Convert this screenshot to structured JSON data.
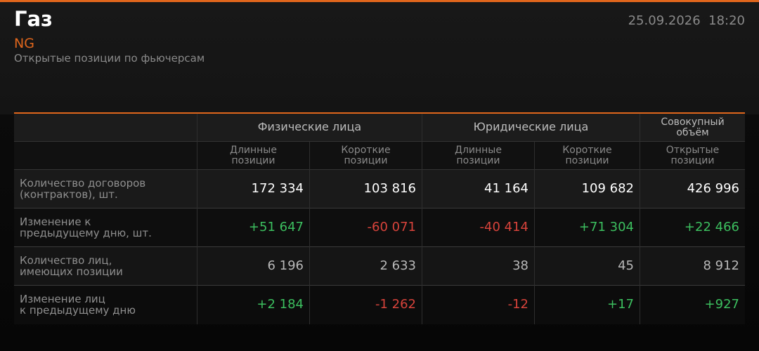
{
  "header": {
    "title": "Газ",
    "ticker": "NG",
    "subtitle": "Открытые позиции по фьючерсам",
    "datetime": "25.09.2026  18:20"
  },
  "table": {
    "groups": [
      "Физические лица",
      "Юридические лица",
      "Совокупный\nобъём"
    ],
    "subheaders": [
      "Длинные\nпозиции",
      "Короткие\nпозиции",
      "Длинные\nпозиции",
      "Короткие\nпозиции",
      "Открытые\nпозиции"
    ],
    "rows": [
      {
        "label": "Количество договоров\n(контрактов), шт.",
        "values": [
          "172 334",
          "103 816",
          "41 164",
          "109 682",
          "426 996"
        ]
      },
      {
        "label": "Изменение к\nпредыдущему дню, шт.",
        "values": [
          "+51 647",
          "-60 071",
          "-40 414",
          "+71 304",
          "+22 466"
        ]
      },
      {
        "label": "Количество лиц,\nимеющих позиции",
        "values": [
          "6 196",
          "2 633",
          "38",
          "45",
          "8 912"
        ]
      },
      {
        "label": "Изменение лиц\nк предыдущему дню",
        "values": [
          "+2 184",
          "-1 262",
          "-12",
          "+17",
          "+927"
        ]
      }
    ]
  }
}
